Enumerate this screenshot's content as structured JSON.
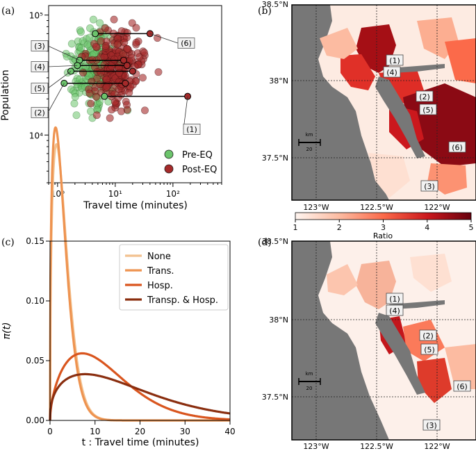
{
  "chart_data": [
    {
      "panel": "(a)",
      "type": "scatter",
      "xlabel": "Travel time (minutes)",
      "ylabel": "Population",
      "xscale": "log",
      "yscale": "log",
      "xlim": [
        0.7,
        700
      ],
      "ylim": [
        4000,
        120000
      ],
      "xticks": [
        {
          "value": 1,
          "label": "10⁰"
        },
        {
          "value": 10,
          "label": "10¹"
        },
        {
          "value": 100,
          "label": "10²"
        }
      ],
      "yticks": [
        {
          "value": 10000,
          "label": "10⁴"
        },
        {
          "value": 100000,
          "label": "10⁵"
        }
      ],
      "legend": [
        {
          "name": "Pre-EQ",
          "color": "#6cc46c"
        },
        {
          "name": "Post-EQ",
          "color": "#a52a2a"
        }
      ],
      "highlighted": [
        {
          "label": "(1)",
          "pre": 6.5,
          "post": 180,
          "pop": 21000
        },
        {
          "label": "(2)",
          "pre": 1.3,
          "post": 15,
          "pop": 27000
        },
        {
          "label": "(3)",
          "pre": 2.4,
          "post": 14,
          "pop": 42000
        },
        {
          "label": "(4)",
          "pre": 2.2,
          "post": 16,
          "pop": 38000
        },
        {
          "label": "(5)",
          "pre": 1.7,
          "post": 20,
          "pop": 34000
        },
        {
          "label": "(6)",
          "pre": 4.5,
          "post": 40,
          "pop": 70000
        }
      ]
    },
    {
      "panel": "(c)",
      "type": "line",
      "xlabel": "t :  Travel time (minutes)",
      "ylabel": "π(t)",
      "xlim": [
        0,
        40
      ],
      "ylim": [
        0,
        0.15
      ],
      "xticks": [
        0,
        10,
        20,
        30,
        40
      ],
      "yticks": [
        "0.00",
        "0.05",
        "0.10",
        "0.15"
      ],
      "series": [
        {
          "name": "None",
          "color": "#f2c18f",
          "shape": 1.45,
          "scale": 3.2
        },
        {
          "name": "Trans.",
          "color": "#ee9350",
          "shape": 1.4,
          "scale": 3.0
        },
        {
          "name": "Hosp.",
          "color": "#d9551e",
          "shape": 1.58,
          "scale": 13.5
        },
        {
          "name": "Transp. & Hosp.",
          "color": "#8a2e0f",
          "shape": 1.4,
          "scale": 19.0
        }
      ]
    }
  ],
  "maps": [
    {
      "panel": "(b)",
      "lat_ticks": [
        "38.5°N",
        "38°N",
        "37.5°N"
      ],
      "lon_ticks": [
        "123°W",
        "122.5°W",
        "122°W"
      ],
      "labels": [
        "(1)",
        "(4)",
        "(2)",
        "(5)",
        "(6)",
        "(3)"
      ],
      "scalebar": {
        "unit": "km",
        "value": "20"
      },
      "colorbar": {
        "label": "Ratio",
        "ticks": [
          "1",
          "2",
          "3",
          "4",
          "5"
        ]
      }
    },
    {
      "panel": "(d)",
      "lat_ticks": [
        "38.5°N",
        "38°N",
        "37.5°N"
      ],
      "lon_ticks": [
        "123°W",
        "122.5°W",
        "122°W"
      ],
      "labels": [
        "(1)",
        "(4)",
        "(2)",
        "(5)",
        "(6)",
        "(3)"
      ],
      "scalebar": {
        "unit": "km",
        "value": "20"
      }
    }
  ]
}
